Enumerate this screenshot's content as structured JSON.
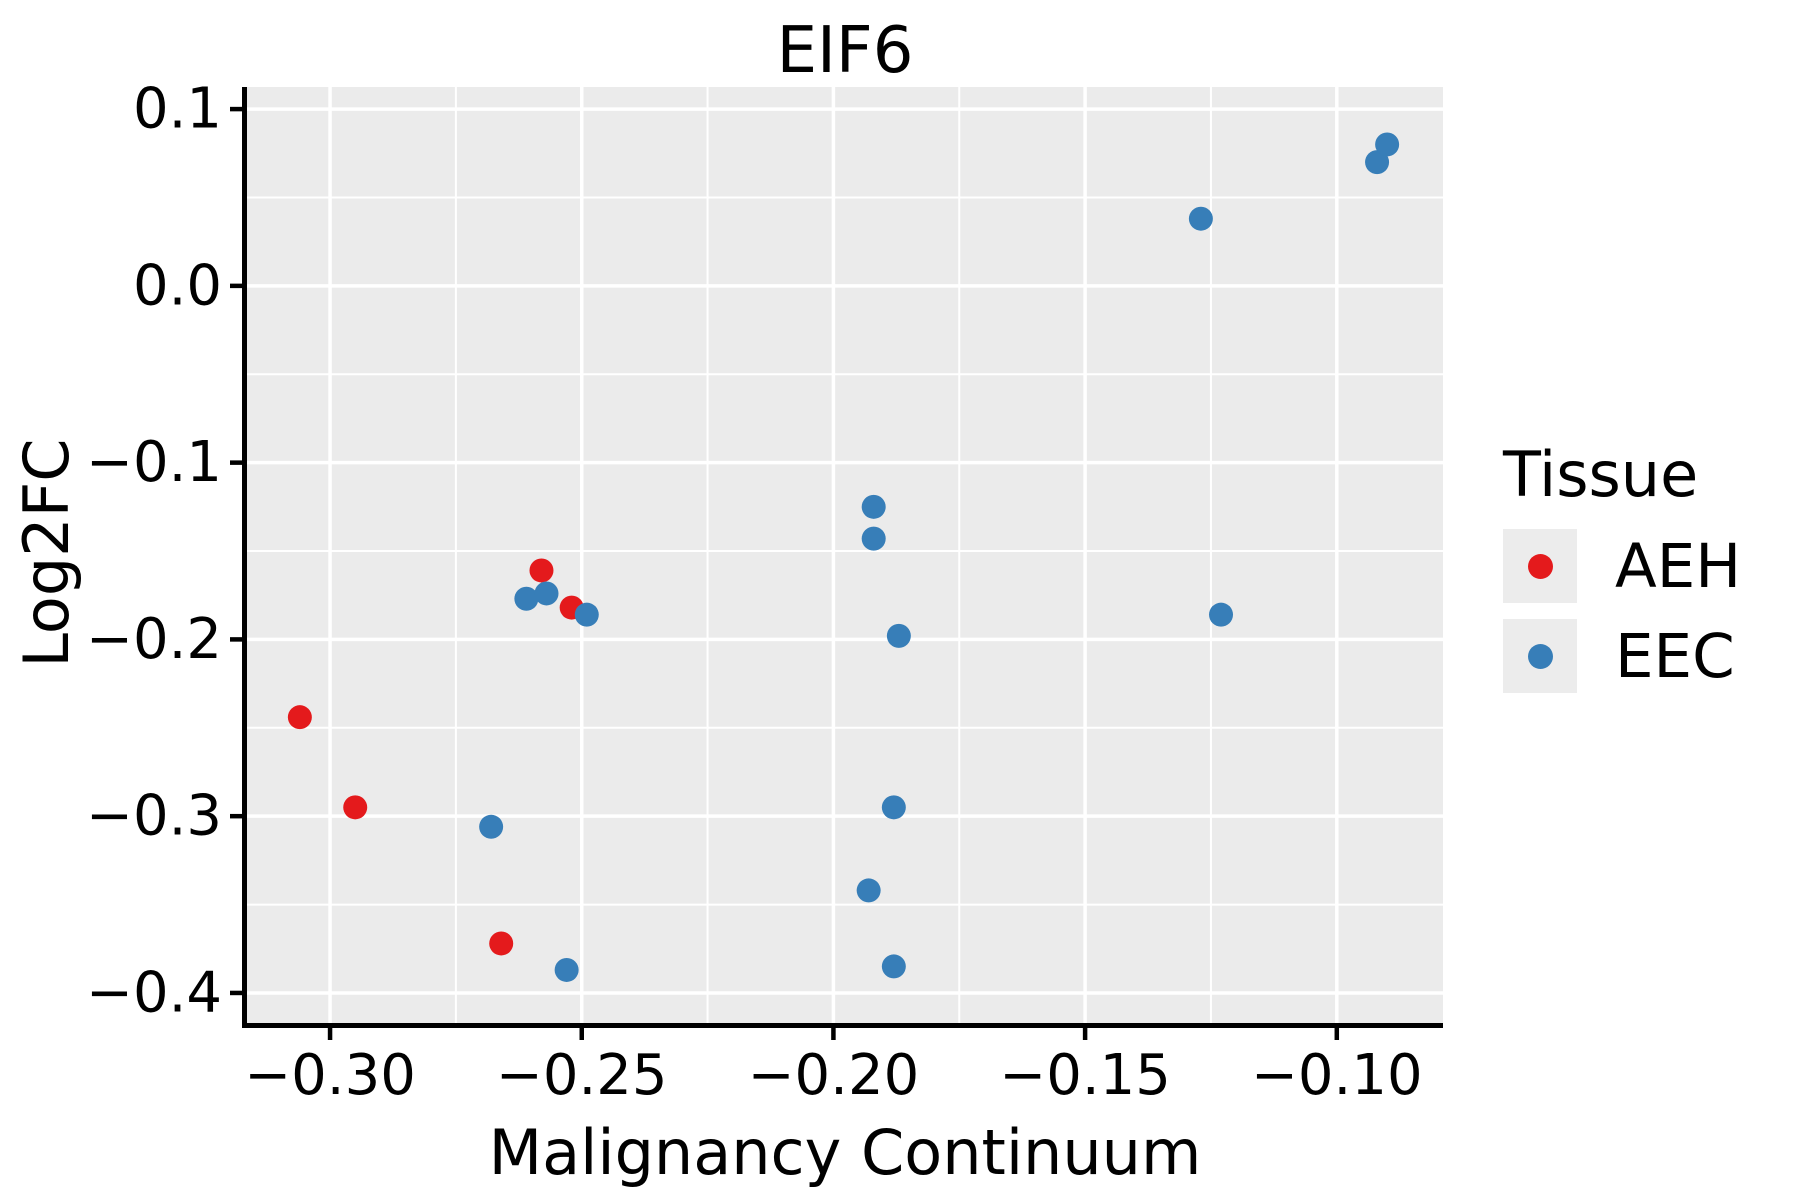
{
  "title": "EIF6",
  "axes": {
    "x": {
      "label": "Malignancy Continuum",
      "ticks": [
        {
          "value": -0.3,
          "label": "−0.30"
        },
        {
          "value": -0.25,
          "label": "−0.25"
        },
        {
          "value": -0.2,
          "label": "−0.20"
        },
        {
          "value": -0.15,
          "label": "−0.15"
        },
        {
          "value": -0.1,
          "label": "−0.10"
        }
      ],
      "minor": [
        -0.275,
        -0.225,
        -0.175,
        -0.125
      ],
      "range": [
        -0.3165,
        -0.0789
      ]
    },
    "y": {
      "label": "Log2FC",
      "ticks": [
        {
          "value": 0.1,
          "label": "0.1"
        },
        {
          "value": 0.0,
          "label": "0.0"
        },
        {
          "value": -0.1,
          "label": "−0.1"
        },
        {
          "value": -0.2,
          "label": "−0.2"
        },
        {
          "value": -0.3,
          "label": "−0.3"
        },
        {
          "value": -0.4,
          "label": "−0.4"
        }
      ],
      "minor": [
        0.05,
        -0.05,
        -0.15,
        -0.25,
        -0.35
      ],
      "range": [
        -0.417,
        0.1125
      ]
    }
  },
  "legend": {
    "title": "Tissue",
    "entries": [
      {
        "label": "AEH",
        "color": "#E41A1C"
      },
      {
        "label": "EEC",
        "color": "#377EB8"
      }
    ]
  },
  "colors": {
    "panel_background": "#EBEBEB",
    "gridline": "#FFFFFF",
    "axis_line": "#000000",
    "text": "#000000"
  },
  "chart_data": {
    "type": "scatter",
    "title": "EIF6",
    "xlabel": "Malignancy Continuum",
    "ylabel": "Log2FC",
    "xlim": [
      -0.3165,
      -0.0789
    ],
    "ylim": [
      -0.417,
      0.1125
    ],
    "x_ticks": [
      -0.3,
      -0.25,
      -0.2,
      -0.15,
      -0.1
    ],
    "y_ticks": [
      0.1,
      0.0,
      -0.1,
      -0.2,
      -0.3,
      -0.4
    ],
    "grid": "white major and minor gridlines on grey panel",
    "legend_position": "right",
    "point_radius_px": 12,
    "series": [
      {
        "name": "AEH",
        "color": "#E41A1C",
        "points": [
          [
            -0.306,
            -0.244
          ],
          [
            -0.295,
            -0.295
          ],
          [
            -0.266,
            -0.372
          ],
          [
            -0.258,
            -0.161
          ],
          [
            -0.252,
            -0.182
          ]
        ]
      },
      {
        "name": "EEC",
        "color": "#377EB8",
        "points": [
          [
            -0.268,
            -0.306
          ],
          [
            -0.261,
            -0.177
          ],
          [
            -0.257,
            -0.174
          ],
          [
            -0.249,
            -0.186
          ],
          [
            -0.253,
            -0.387
          ],
          [
            -0.192,
            -0.125
          ],
          [
            -0.192,
            -0.143
          ],
          [
            -0.187,
            -0.198
          ],
          [
            -0.188,
            -0.295
          ],
          [
            -0.193,
            -0.342
          ],
          [
            -0.188,
            -0.385
          ],
          [
            -0.127,
            0.038
          ],
          [
            -0.123,
            -0.186
          ],
          [
            -0.092,
            0.07
          ],
          [
            -0.09,
            0.08
          ]
        ]
      }
    ]
  }
}
